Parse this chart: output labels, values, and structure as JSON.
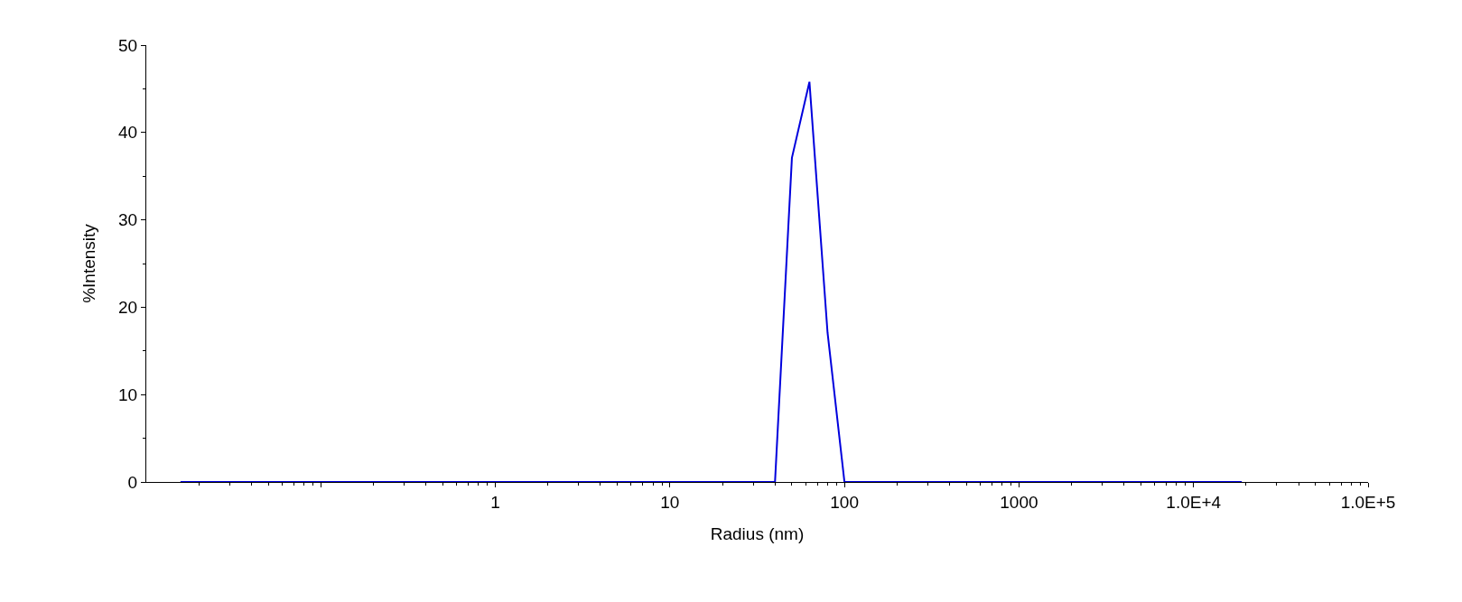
{
  "chart_data": {
    "type": "line",
    "xlabel": "Radius (nm)",
    "ylabel": "%Intensity",
    "x": [
      0.0157,
      40,
      50,
      63,
      80,
      100,
      18900
    ],
    "series": [
      {
        "color": "#0000dd",
        "values": [
          0,
          0,
          37.1,
          45.8,
          17.1,
          0,
          0
        ]
      }
    ],
    "log": "x",
    "xlim": [
      0.01,
      100000
    ],
    "xticks": [
      {
        "value": 0.1,
        "label": null
      },
      1,
      10,
      100,
      1000,
      {
        "value": 10000,
        "label": "1.0E+4"
      },
      {
        "value": 100000,
        "label": "1.0E+5"
      }
    ],
    "ylim": [
      0,
      50
    ],
    "yticks": [
      0,
      10,
      20,
      30,
      40,
      50
    ],
    "marker": "none",
    "line_style": "solid"
  }
}
